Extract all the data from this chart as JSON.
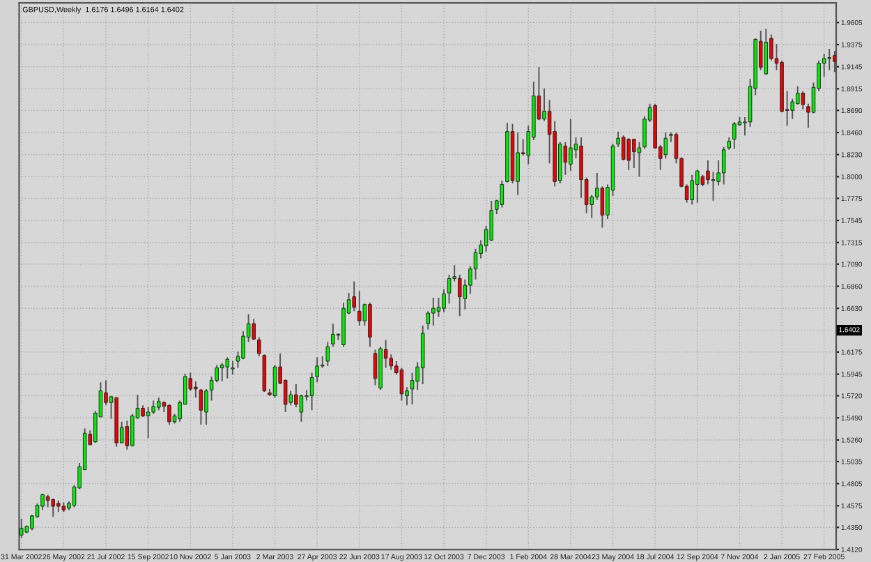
{
  "chart_data": {
    "type": "candlestick",
    "title": "GBPUSD,Weekly  1.6176 1.6496 1.6164 1.6402",
    "x": [
      "2002-03-31",
      "2002-04-07",
      "2002-04-14",
      "2002-04-21",
      "2002-04-28",
      "2002-05-05",
      "2002-05-12",
      "2002-05-19",
      "2002-05-26",
      "2002-06-02",
      "2002-06-09",
      "2002-06-16",
      "2002-06-23",
      "2002-06-30",
      "2002-07-07",
      "2002-07-14",
      "2002-07-21",
      "2002-07-28",
      "2002-08-04",
      "2002-08-11",
      "2002-08-18",
      "2002-08-25",
      "2002-09-01",
      "2002-09-08",
      "2002-09-15",
      "2002-09-22",
      "2002-09-29",
      "2002-10-06",
      "2002-10-13",
      "2002-10-20",
      "2002-10-27",
      "2002-11-03",
      "2002-11-10",
      "2002-11-17",
      "2002-11-24",
      "2002-12-01",
      "2002-12-08",
      "2002-12-15",
      "2002-12-22",
      "2002-12-29",
      "2003-01-05",
      "2003-01-12",
      "2003-01-19",
      "2003-01-26",
      "2003-02-02",
      "2003-02-09",
      "2003-02-16",
      "2003-02-23",
      "2003-03-02",
      "2003-03-09",
      "2003-03-16",
      "2003-03-23",
      "2003-03-30",
      "2003-04-06",
      "2003-04-13",
      "2003-04-20",
      "2003-04-27",
      "2003-05-04",
      "2003-05-11",
      "2003-05-18",
      "2003-05-25",
      "2003-06-01",
      "2003-06-08",
      "2003-06-15",
      "2003-06-22",
      "2003-06-29",
      "2003-07-06",
      "2003-07-13",
      "2003-07-20",
      "2003-07-27",
      "2003-08-03",
      "2003-08-10",
      "2003-08-17",
      "2003-08-24",
      "2003-08-31",
      "2003-09-07",
      "2003-09-14",
      "2003-09-21",
      "2003-09-28",
      "2003-10-05",
      "2003-10-12",
      "2003-10-19",
      "2003-10-26",
      "2003-11-02",
      "2003-11-09",
      "2003-11-16",
      "2003-11-23",
      "2003-11-30",
      "2003-12-07",
      "2003-12-14",
      "2003-12-21",
      "2003-12-28",
      "2004-01-04",
      "2004-01-11",
      "2004-01-18",
      "2004-01-25",
      "2004-02-01",
      "2004-02-08",
      "2004-02-15",
      "2004-02-22",
      "2004-02-29",
      "2004-03-07",
      "2004-03-14",
      "2004-03-21",
      "2004-03-28",
      "2004-04-04",
      "2004-04-11",
      "2004-04-18",
      "2004-04-25",
      "2004-05-02",
      "2004-05-09",
      "2004-05-16",
      "2004-05-23",
      "2004-05-30",
      "2004-06-06",
      "2004-06-13",
      "2004-06-20",
      "2004-06-27",
      "2004-07-04",
      "2004-07-11",
      "2004-07-18",
      "2004-07-25",
      "2004-08-01",
      "2004-08-08",
      "2004-08-15",
      "2004-08-22",
      "2004-08-29",
      "2004-09-05",
      "2004-09-12",
      "2004-09-19",
      "2004-09-26",
      "2004-10-03",
      "2004-10-10",
      "2004-10-17",
      "2004-10-24",
      "2004-10-31",
      "2004-11-07",
      "2004-11-14",
      "2004-11-21",
      "2004-11-28",
      "2004-12-05",
      "2004-12-12",
      "2004-12-19",
      "2004-12-26",
      "2005-01-02",
      "2005-01-09",
      "2005-01-16",
      "2005-01-23",
      "2005-01-30",
      "2005-02-06",
      "2005-02-13",
      "2005-02-20",
      "2005-02-27",
      "2005-03-06",
      "2005-03-13"
    ],
    "ohlc": [
      [
        1.427,
        1.444,
        1.424,
        1.434
      ],
      [
        1.43,
        1.437,
        1.429,
        1.436
      ],
      [
        1.434,
        1.448,
        1.432,
        1.447
      ],
      [
        1.446,
        1.46,
        1.445,
        1.458
      ],
      [
        1.457,
        1.47,
        1.453,
        1.469
      ],
      [
        1.467,
        1.469,
        1.456,
        1.463
      ],
      [
        1.464,
        1.465,
        1.446,
        1.457
      ],
      [
        1.46,
        1.463,
        1.451,
        1.457
      ],
      [
        1.457,
        1.461,
        1.451,
        1.453
      ],
      [
        1.455,
        1.462,
        1.453,
        1.46
      ],
      [
        1.458,
        1.479,
        1.456,
        1.477
      ],
      [
        1.476,
        1.502,
        1.475,
        1.498
      ],
      [
        1.495,
        1.538,
        1.495,
        1.533
      ],
      [
        1.532,
        1.536,
        1.521,
        1.521
      ],
      [
        1.524,
        1.556,
        1.523,
        1.554
      ],
      [
        1.55,
        1.586,
        1.55,
        1.577
      ],
      [
        1.575,
        1.588,
        1.562,
        1.565
      ],
      [
        1.565,
        1.572,
        1.548,
        1.571
      ],
      [
        1.57,
        1.57,
        1.519,
        1.523
      ],
      [
        1.523,
        1.545,
        1.523,
        1.539
      ],
      [
        1.54,
        1.546,
        1.516,
        1.52
      ],
      [
        1.52,
        1.553,
        1.519,
        1.551
      ],
      [
        1.549,
        1.573,
        1.548,
        1.559
      ],
      [
        1.559,
        1.562,
        1.55,
        1.551
      ],
      [
        1.551,
        1.56,
        1.528,
        1.555
      ],
      [
        1.555,
        1.567,
        1.553,
        1.561
      ],
      [
        1.56,
        1.57,
        1.557,
        1.566
      ],
      [
        1.565,
        1.566,
        1.555,
        1.561
      ],
      [
        1.562,
        1.563,
        1.542,
        1.545
      ],
      [
        1.545,
        1.553,
        1.543,
        1.551
      ],
      [
        1.548,
        1.567,
        1.545,
        1.565
      ],
      [
        1.563,
        1.595,
        1.563,
        1.592
      ],
      [
        1.59,
        1.596,
        1.577,
        1.579
      ],
      [
        1.581,
        1.587,
        1.57,
        1.579
      ],
      [
        1.578,
        1.579,
        1.542,
        1.557
      ],
      [
        1.555,
        1.579,
        1.542,
        1.577
      ],
      [
        1.578,
        1.592,
        1.567,
        1.588
      ],
      [
        1.588,
        1.604,
        1.586,
        1.601
      ],
      [
        1.601,
        1.606,
        1.587,
        1.604
      ],
      [
        1.602,
        1.612,
        1.59,
        1.61
      ],
      [
        1.6,
        1.608,
        1.594,
        1.601
      ],
      [
        1.608,
        1.618,
        1.601,
        1.613
      ],
      [
        1.611,
        1.639,
        1.61,
        1.634
      ],
      [
        1.633,
        1.657,
        1.628,
        1.647
      ],
      [
        1.647,
        1.652,
        1.63,
        1.631
      ],
      [
        1.63,
        1.633,
        1.613,
        1.616
      ],
      [
        1.614,
        1.615,
        1.576,
        1.577
      ],
      [
        1.575,
        1.579,
        1.572,
        1.573
      ],
      [
        1.572,
        1.604,
        1.57,
        1.602
      ],
      [
        1.602,
        1.616,
        1.584,
        1.585
      ],
      [
        1.588,
        1.589,
        1.555,
        1.563
      ],
      [
        1.565,
        1.577,
        1.562,
        1.573
      ],
      [
        1.573,
        1.584,
        1.56,
        1.563
      ],
      [
        1.555,
        1.573,
        1.545,
        1.572
      ],
      [
        1.571,
        1.578,
        1.567,
        1.572
      ],
      [
        1.572,
        1.596,
        1.557,
        1.591
      ],
      [
        1.592,
        1.612,
        1.586,
        1.603
      ],
      [
        1.603,
        1.613,
        1.601,
        1.604
      ],
      [
        1.608,
        1.628,
        1.603,
        1.623
      ],
      [
        1.626,
        1.647,
        1.623,
        1.636
      ],
      [
        1.635,
        1.637,
        1.63,
        1.636
      ],
      [
        1.625,
        1.669,
        1.623,
        1.663
      ],
      [
        1.658,
        1.679,
        1.657,
        1.672
      ],
      [
        1.675,
        1.691,
        1.66,
        1.664
      ],
      [
        1.66,
        1.681,
        1.645,
        1.65
      ],
      [
        1.65,
        1.668,
        1.645,
        1.667
      ],
      [
        1.667,
        1.669,
        1.623,
        1.633
      ],
      [
        1.616,
        1.62,
        1.583,
        1.59
      ],
      [
        1.58,
        1.623,
        1.578,
        1.621
      ],
      [
        1.62,
        1.63,
        1.601,
        1.611
      ],
      [
        1.611,
        1.615,
        1.599,
        1.603
      ],
      [
        1.603,
        1.608,
        1.594,
        1.596
      ],
      [
        1.599,
        1.601,
        1.567,
        1.574
      ],
      [
        1.572,
        1.581,
        1.562,
        1.577
      ],
      [
        1.579,
        1.596,
        1.563,
        1.588
      ],
      [
        1.587,
        1.607,
        1.578,
        1.602
      ],
      [
        1.601,
        1.645,
        1.584,
        1.637
      ],
      [
        1.647,
        1.66,
        1.641,
        1.658
      ],
      [
        1.658,
        1.674,
        1.645,
        1.663
      ],
      [
        1.66,
        1.674,
        1.654,
        1.664
      ],
      [
        1.663,
        1.683,
        1.659,
        1.678
      ],
      [
        1.679,
        1.698,
        1.668,
        1.694
      ],
      [
        1.694,
        1.708,
        1.691,
        1.696
      ],
      [
        1.694,
        1.698,
        1.655,
        1.675
      ],
      [
        1.673,
        1.693,
        1.662,
        1.687
      ],
      [
        1.687,
        1.707,
        1.678,
        1.704
      ],
      [
        1.704,
        1.725,
        1.693,
        1.721
      ],
      [
        1.72,
        1.734,
        1.715,
        1.729
      ],
      [
        1.728,
        1.749,
        1.722,
        1.745
      ],
      [
        1.734,
        1.775,
        1.733,
        1.765
      ],
      [
        1.766,
        1.776,
        1.761,
        1.775
      ],
      [
        1.771,
        1.796,
        1.768,
        1.792
      ],
      [
        1.795,
        1.856,
        1.794,
        1.847
      ],
      [
        1.847,
        1.855,
        1.793,
        1.796
      ],
      [
        1.795,
        1.846,
        1.781,
        1.825
      ],
      [
        1.825,
        1.839,
        1.822,
        1.824
      ],
      [
        1.822,
        1.853,
        1.813,
        1.847
      ],
      [
        1.841,
        1.899,
        1.838,
        1.884
      ],
      [
        1.884,
        1.914,
        1.859,
        1.86
      ],
      [
        1.86,
        1.892,
        1.858,
        1.868
      ],
      [
        1.868,
        1.88,
        1.814,
        1.844
      ],
      [
        1.847,
        1.858,
        1.79,
        1.795
      ],
      [
        1.796,
        1.836,
        1.793,
        1.834
      ],
      [
        1.832,
        1.836,
        1.802,
        1.815
      ],
      [
        1.813,
        1.86,
        1.806,
        1.83
      ],
      [
        1.828,
        1.841,
        1.819,
        1.834
      ],
      [
        1.832,
        1.841,
        1.778,
        1.797
      ],
      [
        1.797,
        1.799,
        1.762,
        1.771
      ],
      [
        1.771,
        1.781,
        1.757,
        1.779
      ],
      [
        1.779,
        1.804,
        1.776,
        1.788
      ],
      [
        1.788,
        1.79,
        1.747,
        1.76
      ],
      [
        1.76,
        1.792,
        1.756,
        1.789
      ],
      [
        1.786,
        1.834,
        1.78,
        1.832
      ],
      [
        1.834,
        1.847,
        1.831,
        1.84
      ],
      [
        1.841,
        1.843,
        1.817,
        1.818
      ],
      [
        1.839,
        1.84,
        1.807,
        1.817
      ],
      [
        1.839,
        1.839,
        1.809,
        1.826
      ],
      [
        1.825,
        1.836,
        1.8,
        1.83
      ],
      [
        1.831,
        1.863,
        1.829,
        1.86
      ],
      [
        1.859,
        1.876,
        1.857,
        1.872
      ],
      [
        1.874,
        1.876,
        1.829,
        1.83
      ],
      [
        1.831,
        1.833,
        1.807,
        1.819
      ],
      [
        1.823,
        1.846,
        1.819,
        1.84
      ],
      [
        1.843,
        1.846,
        1.836,
        1.844
      ],
      [
        1.844,
        1.846,
        1.814,
        1.819
      ],
      [
        1.819,
        1.82,
        1.789,
        1.79
      ],
      [
        1.79,
        1.792,
        1.773,
        1.776
      ],
      [
        1.776,
        1.802,
        1.771,
        1.796
      ],
      [
        1.792,
        1.807,
        1.773,
        1.806
      ],
      [
        1.8,
        1.802,
        1.79,
        1.792
      ],
      [
        1.806,
        1.817,
        1.792,
        1.797
      ],
      [
        1.796,
        1.805,
        1.775,
        1.797
      ],
      [
        1.795,
        1.817,
        1.791,
        1.804
      ],
      [
        1.804,
        1.831,
        1.792,
        1.828
      ],
      [
        1.83,
        1.841,
        1.828,
        1.837
      ],
      [
        1.839,
        1.857,
        1.829,
        1.855
      ],
      [
        1.854,
        1.862,
        1.853,
        1.857
      ],
      [
        1.856,
        1.862,
        1.843,
        1.857
      ],
      [
        1.857,
        1.902,
        1.852,
        1.894
      ],
      [
        1.892,
        1.944,
        1.885,
        1.943
      ],
      [
        1.941,
        1.952,
        1.911,
        1.914
      ],
      [
        1.907,
        1.954,
        1.906,
        1.94
      ],
      [
        1.944,
        1.948,
        1.921,
        1.923
      ],
      [
        1.923,
        1.938,
        1.911,
        1.918
      ],
      [
        1.919,
        1.921,
        1.867,
        1.868
      ],
      [
        1.87,
        1.889,
        1.853,
        1.869
      ],
      [
        1.869,
        1.881,
        1.86,
        1.878
      ],
      [
        1.876,
        1.894,
        1.875,
        1.887
      ],
      [
        1.887,
        1.889,
        1.87,
        1.875
      ],
      [
        1.873,
        1.876,
        1.851,
        1.867
      ],
      [
        1.867,
        1.898,
        1.866,
        1.893
      ],
      [
        1.892,
        1.921,
        1.889,
        1.918
      ],
      [
        1.918,
        1.928,
        1.904,
        1.923
      ],
      [
        1.923,
        1.933,
        1.911,
        1.924
      ],
      [
        1.926,
        1.931,
        1.909,
        1.92
      ]
    ],
    "xlim": [
      "2002-03-28",
      "2005-03-15"
    ],
    "xticks": [
      {
        "value": "2002-03-31",
        "label": "31 Mar 2002"
      },
      {
        "value": "2002-05-26",
        "label": "26 May 2002"
      },
      {
        "value": "2002-07-21",
        "label": "21 Jul 2002"
      },
      {
        "value": "2002-09-15",
        "label": "15 Sep 2002"
      },
      {
        "value": "2002-11-10",
        "label": "10 Nov 2002"
      },
      {
        "value": "2003-01-05",
        "label": "5 Jan 2003"
      },
      {
        "value": "2003-03-02",
        "label": "2 Mar 2003"
      },
      {
        "value": "2003-04-27",
        "label": "27 Apr 2003"
      },
      {
        "value": "2003-06-22",
        "label": "22 Jun 2003"
      },
      {
        "value": "2003-08-17",
        "label": "17 Aug 2003"
      },
      {
        "value": "2003-10-12",
        "label": "12 Oct 2003"
      },
      {
        "value": "2003-12-07",
        "label": "7 Dec 2003"
      },
      {
        "value": "2004-02-01",
        "label": "1 Feb 2004"
      },
      {
        "value": "2004-03-28",
        "label": "28 Mar 2004"
      },
      {
        "value": "2004-05-23",
        "label": "23 May 2004"
      },
      {
        "value": "2004-07-18",
        "label": "18 Jul 2004"
      },
      {
        "value": "2004-09-12",
        "label": "12 Sep 2004"
      },
      {
        "value": "2004-11-07",
        "label": "7 Nov 2004"
      },
      {
        "value": "2005-01-02",
        "label": "2 Jan 2005"
      },
      {
        "value": "2005-02-27",
        "label": "27 Feb 2005"
      }
    ],
    "ylim": [
      1.412,
      1.981
    ],
    "yticks": [
      {
        "value": 1.412,
        "label": "1.4120"
      },
      {
        "value": 1.435,
        "label": "1.4350"
      },
      {
        "value": 1.4575,
        "label": "1.4575"
      },
      {
        "value": 1.4805,
        "label": "1.4805"
      },
      {
        "value": 1.5035,
        "label": "1.5035"
      },
      {
        "value": 1.526,
        "label": "1.5260"
      },
      {
        "value": 1.549,
        "label": "1.5490"
      },
      {
        "value": 1.572,
        "label": "1.5720"
      },
      {
        "value": 1.5945,
        "label": "1.5945"
      },
      {
        "value": 1.6175,
        "label": "1.6175"
      },
      {
        "value": 1.663,
        "label": "1.6630"
      },
      {
        "value": 1.686,
        "label": "1.6860"
      },
      {
        "value": 1.709,
        "label": "1.7090"
      },
      {
        "value": 1.7315,
        "label": "1.7315"
      },
      {
        "value": 1.7545,
        "label": "1.7545"
      },
      {
        "value": 1.7775,
        "label": "1.7775"
      },
      {
        "value": 1.8,
        "label": "1.8000"
      },
      {
        "value": 1.823,
        "label": "1.8230"
      },
      {
        "value": 1.846,
        "label": "1.8460"
      },
      {
        "value": 1.869,
        "label": "1.8690"
      },
      {
        "value": 1.8915,
        "label": "1.8915"
      },
      {
        "value": 1.9145,
        "label": "1.9145"
      },
      {
        "value": 1.9375,
        "label": "1.9375"
      },
      {
        "value": 1.9605,
        "label": "1.9605"
      }
    ],
    "ref_lines": [
      {
        "axis": "y",
        "value": 1.6402,
        "label": "1.6402",
        "color": "#c0c0c0",
        "line_style": "dotted"
      }
    ],
    "grid": true
  }
}
